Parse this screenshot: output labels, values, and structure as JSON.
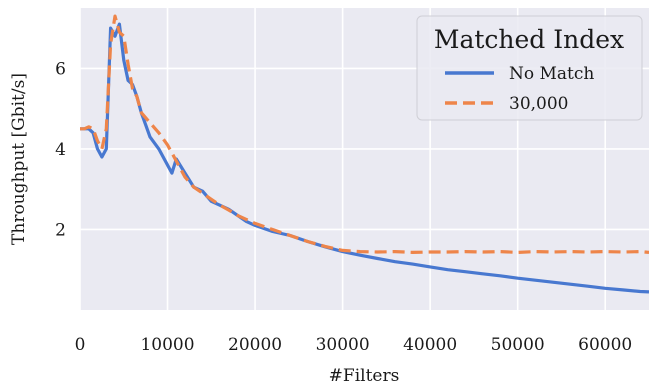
{
  "chart_data": {
    "type": "line",
    "title": "",
    "xlabel": "#Filters",
    "ylabel": "Throughput [Gbit/s]",
    "xlim": [
      0,
      65000
    ],
    "ylim": [
      0,
      7.5
    ],
    "xticks": [
      0,
      10000,
      20000,
      30000,
      40000,
      50000,
      60000
    ],
    "xtick_labels": [
      "0",
      "10000",
      "20000",
      "30000",
      "40000",
      "50000",
      "60000"
    ],
    "yticks": [
      2,
      4,
      6
    ],
    "ytick_labels": [
      "2",
      "4",
      "6"
    ],
    "grid": true,
    "legend": {
      "title": "Matched Index",
      "placement": "top-right"
    },
    "series": [
      {
        "name": "No Match",
        "color": "#4878d0",
        "dash": "solid",
        "x": [
          0,
          500,
          1000,
          1500,
          2000,
          2500,
          3000,
          3500,
          4000,
          4500,
          5000,
          5500,
          6000,
          6500,
          7000,
          8000,
          9000,
          10000,
          10500,
          11000,
          12000,
          13000,
          14000,
          15000,
          16000,
          17000,
          18000,
          19000,
          20000,
          22000,
          24000,
          26000,
          28000,
          30000,
          32000,
          34000,
          36000,
          38000,
          40000,
          42000,
          44000,
          46000,
          48000,
          50000,
          52000,
          54000,
          56000,
          58000,
          60000,
          62000,
          64000,
          65000
        ],
        "y": [
          4.5,
          4.5,
          4.5,
          4.4,
          4.0,
          3.8,
          4.0,
          7.0,
          6.8,
          7.1,
          6.2,
          5.7,
          5.6,
          5.3,
          4.9,
          4.3,
          4.0,
          3.6,
          3.4,
          3.75,
          3.4,
          3.05,
          2.95,
          2.7,
          2.6,
          2.5,
          2.35,
          2.2,
          2.1,
          1.95,
          1.85,
          1.7,
          1.57,
          1.45,
          1.36,
          1.28,
          1.2,
          1.14,
          1.07,
          1.0,
          0.95,
          0.9,
          0.85,
          0.79,
          0.74,
          0.69,
          0.64,
          0.59,
          0.54,
          0.5,
          0.46,
          0.45
        ]
      },
      {
        "name": "30,000",
        "color": "#ee854a",
        "dash": "dashed",
        "x": [
          0,
          500,
          1000,
          1500,
          2000,
          2500,
          3000,
          3500,
          4000,
          4500,
          5000,
          5500,
          6000,
          6500,
          7000,
          8000,
          9000,
          10000,
          11000,
          12000,
          13000,
          14000,
          15000,
          16000,
          17000,
          18000,
          19000,
          20000,
          22000,
          24000,
          26000,
          28000,
          30000,
          32000,
          34000,
          36000,
          38000,
          40000,
          42000,
          44000,
          46000,
          48000,
          50000,
          52000,
          54000,
          56000,
          58000,
          60000,
          62000,
          64000,
          65000
        ],
        "y": [
          4.5,
          4.5,
          4.55,
          4.5,
          4.2,
          4.0,
          4.5,
          6.6,
          7.3,
          6.9,
          6.8,
          6.1,
          5.5,
          5.3,
          4.9,
          4.65,
          4.4,
          4.1,
          3.7,
          3.3,
          3.05,
          2.9,
          2.75,
          2.6,
          2.48,
          2.35,
          2.25,
          2.15,
          2.0,
          1.85,
          1.7,
          1.58,
          1.48,
          1.45,
          1.44,
          1.45,
          1.43,
          1.44,
          1.44,
          1.45,
          1.44,
          1.45,
          1.43,
          1.45,
          1.44,
          1.45,
          1.44,
          1.45,
          1.44,
          1.45,
          1.43
        ]
      }
    ]
  }
}
